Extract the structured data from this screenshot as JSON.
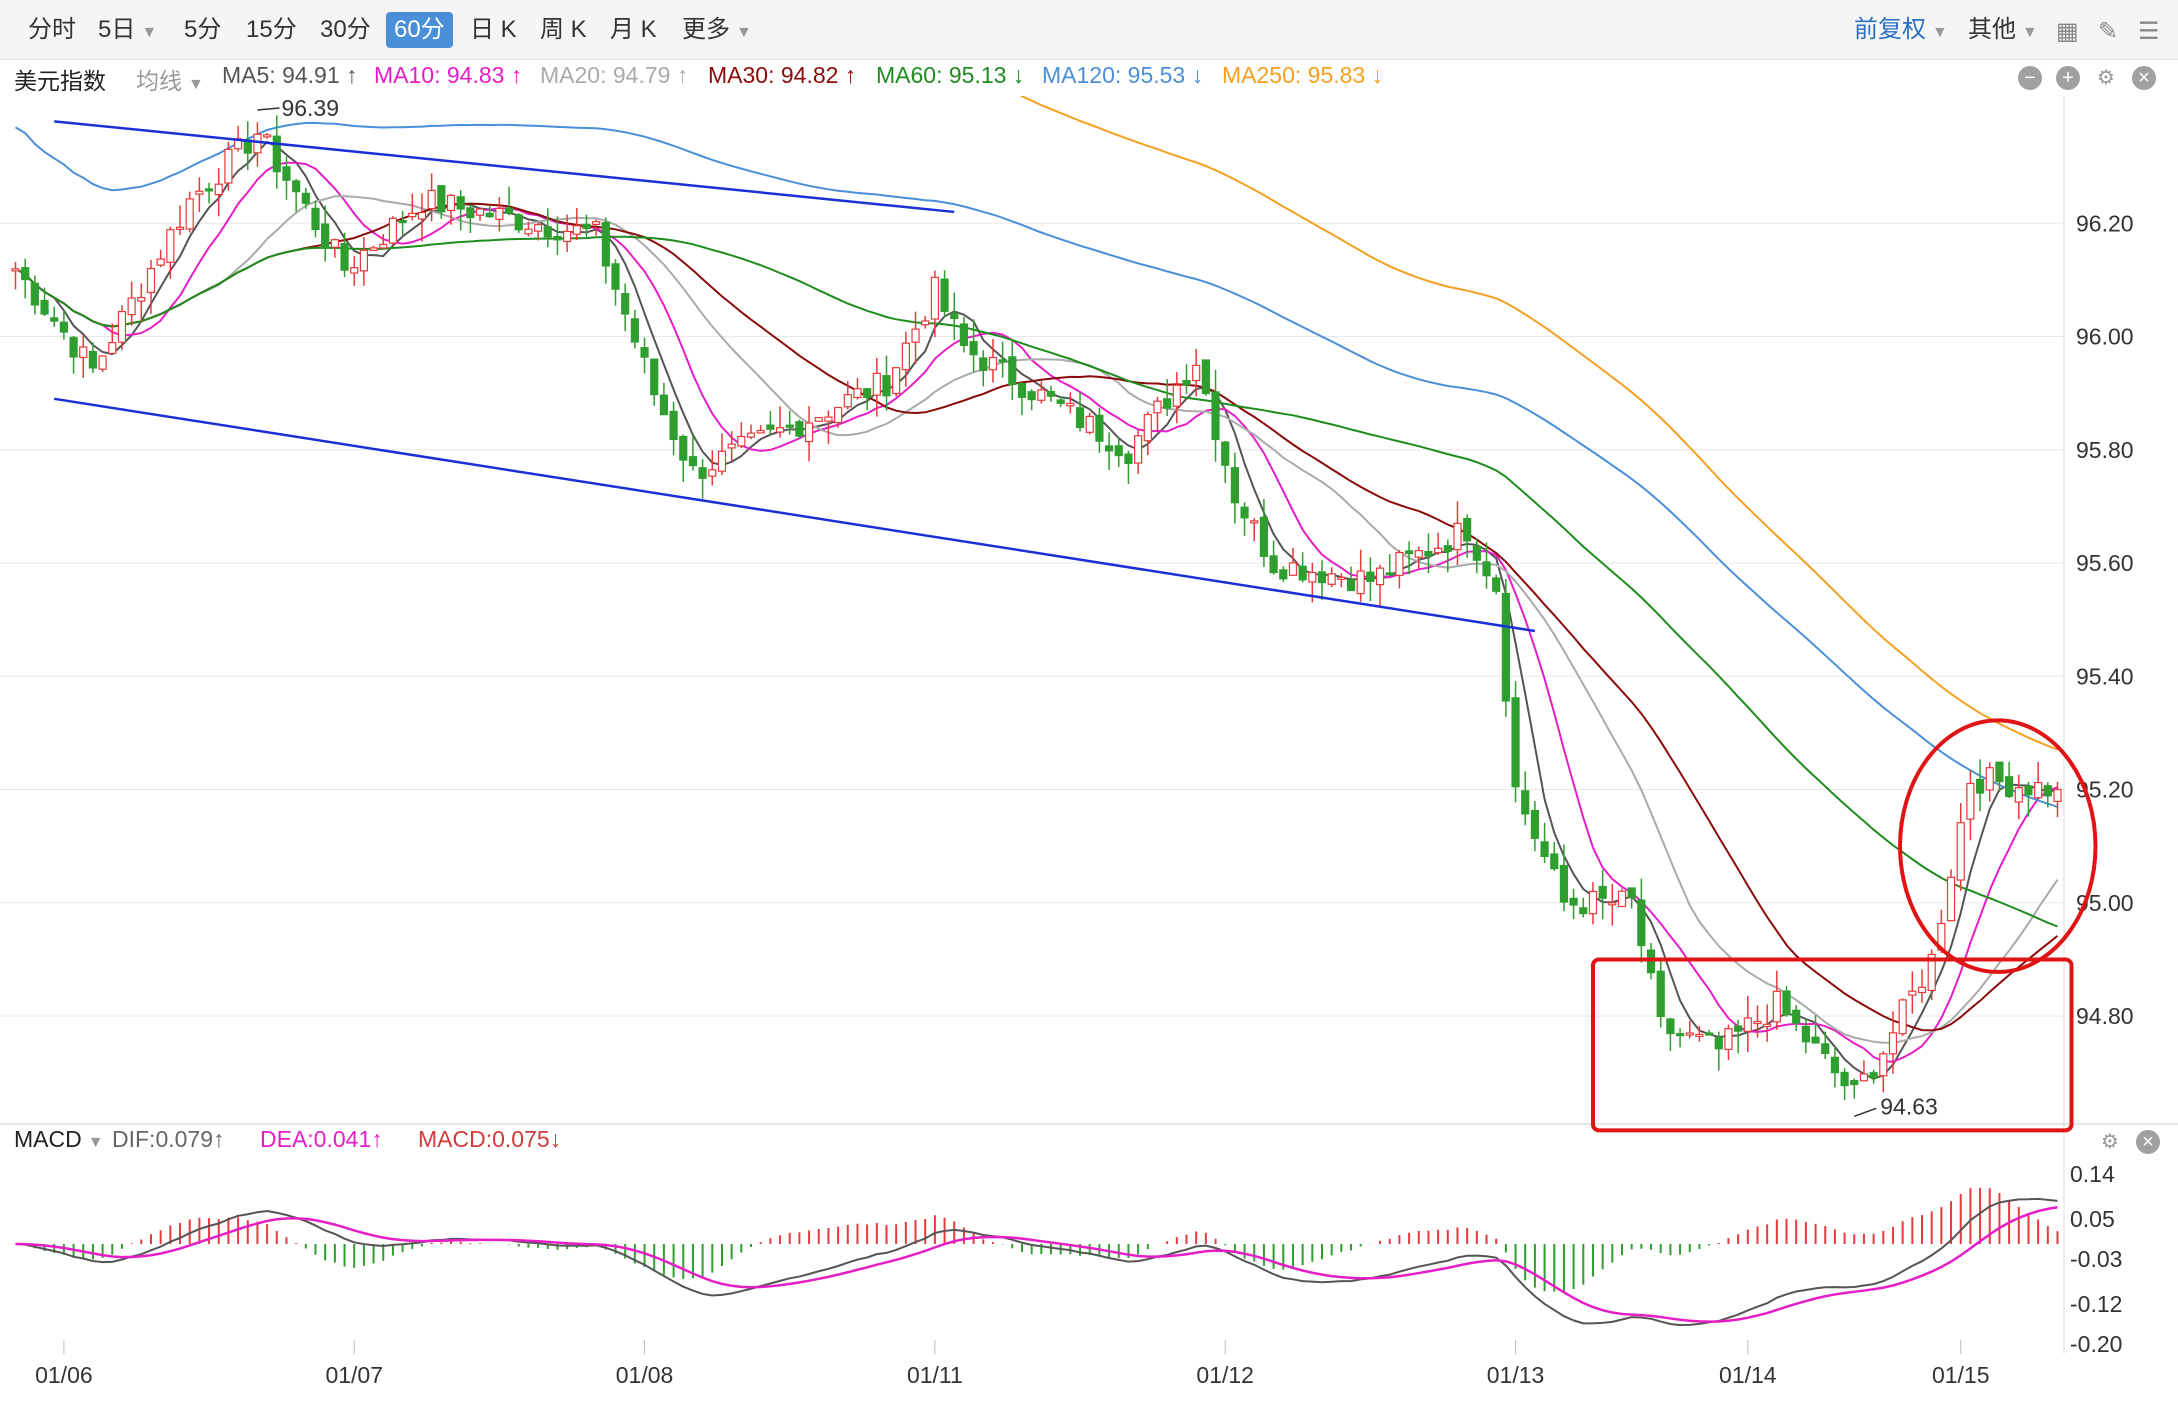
{
  "toolbar": {
    "tabs": [
      "分时",
      "5日",
      "5分",
      "15分",
      "30分",
      "60分",
      "日 K",
      "周 K",
      "月 K",
      "更多"
    ],
    "active_tab": "60分",
    "right_items": [
      "前复权",
      "其他"
    ]
  },
  "indicators": {
    "symbol": "美元指数",
    "mode": "均线",
    "ma": [
      {
        "label": "MA5: 94.91 ↑",
        "color": "#555555"
      },
      {
        "label": "MA10: 94.83 ↑",
        "color": "#e61ec8"
      },
      {
        "label": "MA20: 94.79 ↑",
        "color": "#aaaaaa"
      },
      {
        "label": "MA30: 94.82 ↑",
        "color": "#8b0a0a"
      },
      {
        "label": "MA60: 95.13 ↓",
        "color": "#1e8c1e"
      },
      {
        "label": "MA120: 95.53 ↓",
        "color": "#4a90d9"
      },
      {
        "label": "MA250: 95.83 ↓",
        "color": "#f5a020"
      }
    ]
  },
  "macd": {
    "name": "MACD",
    "dif": "DIF:0.079↑",
    "dea": "DEA:0.041↑",
    "macd": "MACD:0.075↓"
  },
  "annotations": {
    "high": "96.39",
    "low": "94.63"
  },
  "icons": [
    "minus-icon",
    "plus-icon",
    "gear-icon",
    "close-icon",
    "grid-icon",
    "draw-icon",
    "menu-icon"
  ],
  "chart_data": {
    "type": "candlestick",
    "price_ticks": [
      "96.20",
      "96.00",
      "95.80",
      "95.60",
      "95.40",
      "95.20",
      "95.00",
      "94.80"
    ],
    "price_tick_values": [
      96.2,
      96.0,
      95.8,
      95.6,
      95.4,
      95.2,
      95.0,
      94.8
    ],
    "ylim": [
      94.62,
      96.4
    ],
    "macd_ticks": [
      "0.14",
      "0.05",
      "-0.03",
      "-0.12",
      "-0.20"
    ],
    "macd_tick_values": [
      0.14,
      0.05,
      -0.03,
      -0.12,
      -0.2
    ],
    "macd_ylim": [
      -0.22,
      0.16
    ],
    "dates": [
      "01/06",
      "01/07",
      "01/08",
      "01/11",
      "01/12",
      "01/13",
      "01/14",
      "01/15"
    ],
    "date_bar_index": [
      5,
      35,
      65,
      95,
      125,
      155,
      179,
      201
    ],
    "bars_total": 212,
    "last_close": 95.2,
    "trend_channel": {
      "upper": [
        [
          4,
          96.38
        ],
        [
          97,
          96.22
        ]
      ],
      "lower": [
        [
          4,
          95.89
        ],
        [
          157,
          95.48
        ]
      ]
    },
    "highlight_boxes": [
      "rect-lows",
      "circle-breakout"
    ]
  }
}
